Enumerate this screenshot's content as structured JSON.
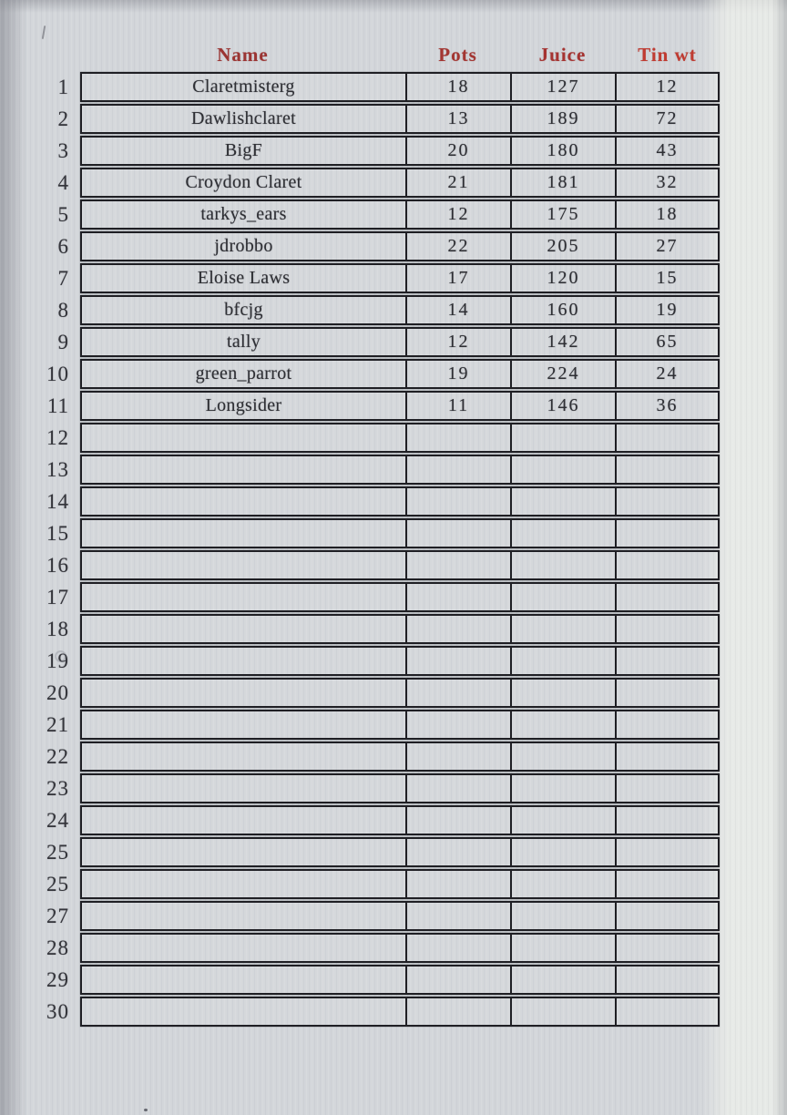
{
  "table": {
    "columns": [
      {
        "label": "Name",
        "color": "#9b3533"
      },
      {
        "label": "Pots",
        "color": "#a33632"
      },
      {
        "label": "Juice",
        "color": "#a53331"
      },
      {
        "label": "Tin wt",
        "color": "#c03b31"
      }
    ],
    "rows": [
      {
        "num": "1",
        "name": "Claretmisterg",
        "pots": "18",
        "juice": "127",
        "tin_wt": "12"
      },
      {
        "num": "2",
        "name": "Dawlishclaret",
        "pots": "13",
        "juice": "189",
        "tin_wt": "72"
      },
      {
        "num": "3",
        "name": "BigF",
        "pots": "20",
        "juice": "180",
        "tin_wt": "43"
      },
      {
        "num": "4",
        "name": "Croydon Claret",
        "pots": "21",
        "juice": "181",
        "tin_wt": "32"
      },
      {
        "num": "5",
        "name": "tarkys_ears",
        "pots": "12",
        "juice": "175",
        "tin_wt": "18"
      },
      {
        "num": "6",
        "name": "jdrobbo",
        "pots": "22",
        "juice": "205",
        "tin_wt": "27"
      },
      {
        "num": "7",
        "name": "Eloise Laws",
        "pots": "17",
        "juice": "120",
        "tin_wt": "15"
      },
      {
        "num": "8",
        "name": "bfcjg",
        "pots": "14",
        "juice": "160",
        "tin_wt": "19"
      },
      {
        "num": "9",
        "name": "tally",
        "pots": "12",
        "juice": "142",
        "tin_wt": "65"
      },
      {
        "num": "10",
        "name": "green_parrot",
        "pots": "19",
        "juice": "224",
        "tin_wt": "24"
      },
      {
        "num": "11",
        "name": "Longsider",
        "pots": "11",
        "juice": "146",
        "tin_wt": "36"
      },
      {
        "num": "12",
        "name": "",
        "pots": "",
        "juice": "",
        "tin_wt": ""
      },
      {
        "num": "13",
        "name": "",
        "pots": "",
        "juice": "",
        "tin_wt": ""
      },
      {
        "num": "14",
        "name": "",
        "pots": "",
        "juice": "",
        "tin_wt": ""
      },
      {
        "num": "15",
        "name": "",
        "pots": "",
        "juice": "",
        "tin_wt": ""
      },
      {
        "num": "16",
        "name": "",
        "pots": "",
        "juice": "",
        "tin_wt": ""
      },
      {
        "num": "17",
        "name": "",
        "pots": "",
        "juice": "",
        "tin_wt": ""
      },
      {
        "num": "18",
        "name": "",
        "pots": "",
        "juice": "",
        "tin_wt": ""
      },
      {
        "num": "19",
        "name": "",
        "pots": "",
        "juice": "",
        "tin_wt": ""
      },
      {
        "num": "20",
        "name": "",
        "pots": "",
        "juice": "",
        "tin_wt": ""
      },
      {
        "num": "21",
        "name": "",
        "pots": "",
        "juice": "",
        "tin_wt": ""
      },
      {
        "num": "22",
        "name": "",
        "pots": "",
        "juice": "",
        "tin_wt": ""
      },
      {
        "num": "23",
        "name": "",
        "pots": "",
        "juice": "",
        "tin_wt": ""
      },
      {
        "num": "24",
        "name": "",
        "pots": "",
        "juice": "",
        "tin_wt": ""
      },
      {
        "num": "25",
        "name": "",
        "pots": "",
        "juice": "",
        "tin_wt": ""
      },
      {
        "num": "25",
        "name": "",
        "pots": "",
        "juice": "",
        "tin_wt": ""
      },
      {
        "num": "27",
        "name": "",
        "pots": "",
        "juice": "",
        "tin_wt": ""
      },
      {
        "num": "28",
        "name": "",
        "pots": "",
        "juice": "",
        "tin_wt": ""
      },
      {
        "num": "29",
        "name": "",
        "pots": "",
        "juice": "",
        "tin_wt": ""
      },
      {
        "num": "30",
        "name": "",
        "pots": "",
        "juice": "",
        "tin_wt": ""
      }
    ]
  },
  "colors": {
    "background": "#d3d6da",
    "grid_border": "#1f1f24",
    "cell_text": "#2e2f34",
    "row_number_text": "#34353b"
  }
}
